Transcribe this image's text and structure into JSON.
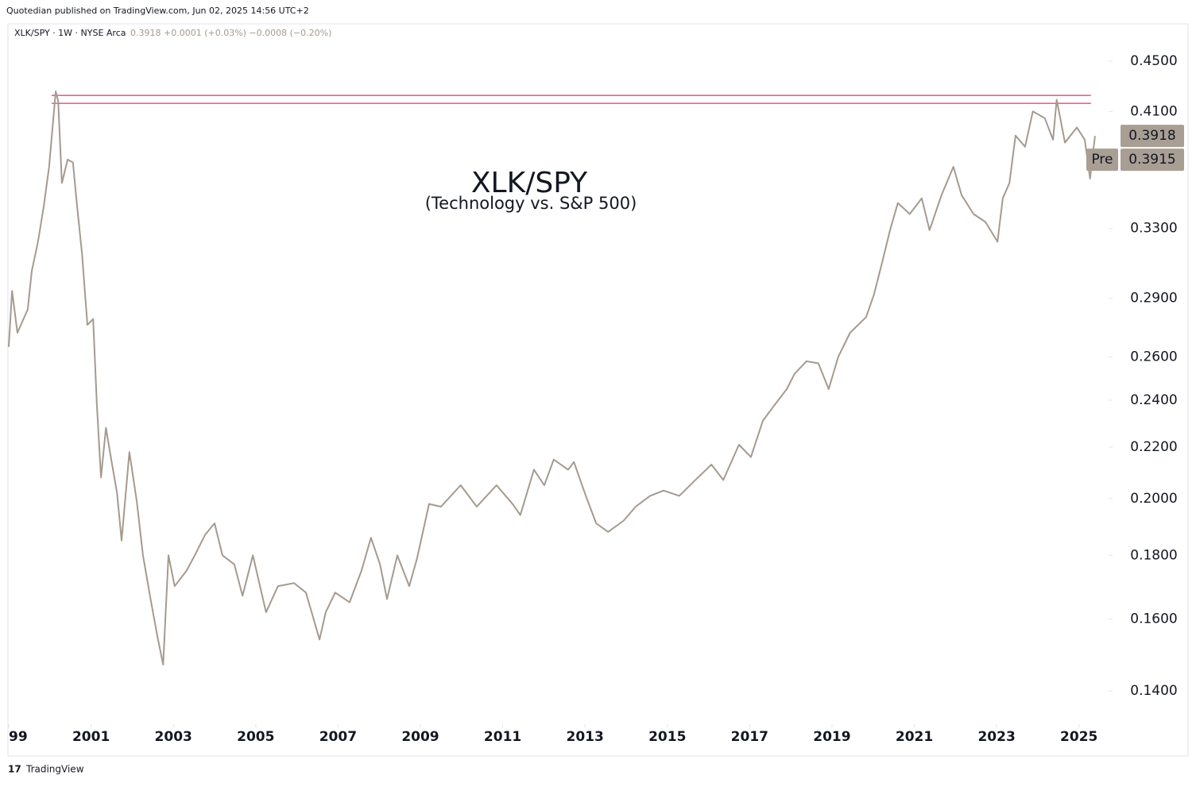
{
  "header": {
    "publisher": "Quotedian published on TradingView.com, Jun 02, 2025 14:56 UTC+2",
    "symbol": "XLK/SPY · 1W · NYSE Arca",
    "quote": "0.3918 +0.0001 (+0.03%) −0.0008 (−0.20%)"
  },
  "footer": {
    "brand": "TradingView"
  },
  "chart_data": {
    "type": "line",
    "title": "XLK/SPY",
    "subtitle": "(Technology vs. S&P 500)",
    "color": "#a59a8f",
    "log_scale": true,
    "grid": false,
    "x": [
      1999.0,
      1999.08,
      1999.21,
      1999.46,
      1999.56,
      1999.71,
      1999.85,
      1999.98,
      2000.14,
      2000.2,
      2000.29,
      2000.43,
      2000.56,
      2000.66,
      2000.78,
      2000.91,
      2001.05,
      2001.14,
      2001.24,
      2001.36,
      2001.49,
      2001.63,
      2001.74,
      2001.93,
      2002.11,
      2002.26,
      2002.46,
      2002.61,
      2002.75,
      2002.88,
      2003.03,
      2003.32,
      2003.52,
      2003.77,
      2004.0,
      2004.19,
      2004.48,
      2004.68,
      2004.93,
      2005.25,
      2005.54,
      2005.93,
      2006.22,
      2006.55,
      2006.7,
      2006.93,
      2007.28,
      2007.57,
      2007.8,
      2008.02,
      2008.19,
      2008.44,
      2008.73,
      2008.92,
      2009.21,
      2009.5,
      2009.98,
      2010.37,
      2010.85,
      2011.24,
      2011.43,
      2011.76,
      2012.01,
      2012.24,
      2012.59,
      2012.73,
      2013.02,
      2013.27,
      2013.56,
      2013.94,
      2014.23,
      2014.58,
      2014.91,
      2015.29,
      2015.68,
      2016.07,
      2016.36,
      2016.74,
      2017.03,
      2017.32,
      2017.61,
      2017.9,
      2018.09,
      2018.38,
      2018.67,
      2018.92,
      2019.15,
      2019.44,
      2019.83,
      2020.02,
      2020.22,
      2020.41,
      2020.6,
      2020.89,
      2021.18,
      2021.37,
      2021.66,
      2021.95,
      2022.15,
      2022.44,
      2022.73,
      2023.02,
      2023.15,
      2023.31,
      2023.46,
      2023.69,
      2023.88,
      2024.17,
      2024.37,
      2024.46,
      2024.66,
      2024.95,
      2025.14,
      2025.27,
      2025.39
    ],
    "values": [
      0.265,
      0.294,
      0.272,
      0.284,
      0.305,
      0.322,
      0.344,
      0.37,
      0.4255,
      0.418,
      0.359,
      0.375,
      0.373,
      0.344,
      0.315,
      0.276,
      0.279,
      0.238,
      0.208,
      0.228,
      0.215,
      0.202,
      0.185,
      0.218,
      0.199,
      0.18,
      0.165,
      0.155,
      0.147,
      0.18,
      0.17,
      0.175,
      0.18,
      0.187,
      0.191,
      0.18,
      0.177,
      0.167,
      0.18,
      0.162,
      0.17,
      0.171,
      0.168,
      0.154,
      0.162,
      0.168,
      0.165,
      0.175,
      0.186,
      0.177,
      0.166,
      0.18,
      0.17,
      0.179,
      0.198,
      0.197,
      0.205,
      0.197,
      0.205,
      0.198,
      0.194,
      0.211,
      0.205,
      0.215,
      0.211,
      0.214,
      0.201,
      0.191,
      0.188,
      0.192,
      0.197,
      0.201,
      0.203,
      0.201,
      0.207,
      0.213,
      0.207,
      0.221,
      0.216,
      0.231,
      0.238,
      0.245,
      0.252,
      0.258,
      0.257,
      0.245,
      0.26,
      0.272,
      0.28,
      0.292,
      0.31,
      0.329,
      0.346,
      0.339,
      0.349,
      0.329,
      0.351,
      0.37,
      0.351,
      0.339,
      0.334,
      0.322,
      0.349,
      0.359,
      0.392,
      0.384,
      0.41,
      0.405,
      0.389,
      0.419,
      0.387,
      0.398,
      0.389,
      0.362,
      0.3918
    ],
    "xlim": [
      1998.98,
      2025.72
    ],
    "xticks": [
      1999,
      2001,
      2003,
      2005,
      2007,
      2009,
      2011,
      2013,
      2015,
      2017,
      2019,
      2021,
      2023,
      2025
    ],
    "ylim": [
      0.1316,
      0.4649
    ],
    "yticks": [
      {
        "value": 0.14,
        "label": "0.1400"
      },
      {
        "value": 0.16,
        "label": "0.1600"
      },
      {
        "value": 0.18,
        "label": "0.1800"
      },
      {
        "value": 0.2,
        "label": "0.2000"
      },
      {
        "value": 0.22,
        "label": "0.2200"
      },
      {
        "value": 0.24,
        "label": "0.2400"
      },
      {
        "value": 0.26,
        "label": "0.2600"
      },
      {
        "value": 0.29,
        "label": "0.2900"
      },
      {
        "value": 0.33,
        "label": "0.3300"
      },
      {
        "value": 0.41,
        "label": "0.4100"
      },
      {
        "value": 0.45,
        "label": "0.4500"
      }
    ],
    "hlines": {
      "values": [
        0.4224,
        0.4162
      ],
      "from": 2000.04,
      "to": 2025.29,
      "color": "#e2336b"
    },
    "last_price": 0.3918,
    "pre_price": 0.3915,
    "pre_label": "Pre",
    "tag_color": "#a89e94"
  }
}
